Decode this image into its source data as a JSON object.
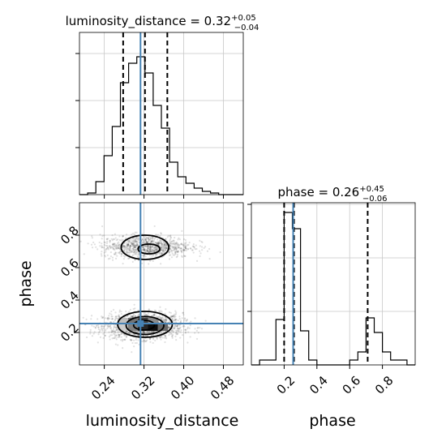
{
  "chart_data": {
    "type": "corner",
    "parameters": [
      "luminosity_distance",
      "phase"
    ],
    "truth": {
      "luminosity_distance": 0.313,
      "phase": 0.255
    },
    "color_truth": "#4682b4",
    "color_hist": "#000000",
    "color_grid": "#c8c8c8",
    "grid": true,
    "panels": [
      {
        "id": "hist_luminosity_distance",
        "type": "histogram",
        "title": "luminosity_distance = 0.32",
        "title_sup": "+0.05",
        "title_sub": "−0.04",
        "xlim": [
          0.19,
          0.52
        ],
        "ylim": [
          0,
          1
        ],
        "bin_edges": [
          0.19,
          0.2065,
          0.223,
          0.2395,
          0.256,
          0.2725,
          0.289,
          0.3055,
          0.322,
          0.3385,
          0.355,
          0.3715,
          0.388,
          0.4045,
          0.421,
          0.4375,
          0.454,
          0.4705,
          0.487,
          0.5035,
          0.52
        ],
        "counts": [
          0.0,
          0.01,
          0.08,
          0.24,
          0.42,
          0.69,
          0.81,
          0.85,
          0.75,
          0.55,
          0.41,
          0.2,
          0.11,
          0.07,
          0.04,
          0.02,
          0.01,
          0.0,
          0.0,
          0.0
        ],
        "quantiles": [
          0.278,
          0.322,
          0.367
        ]
      },
      {
        "id": "hist_phase",
        "type": "histogram",
        "title": "phase = 0.26",
        "title_sup": "+0.45",
        "title_sub": "−0.06",
        "xlim": [
          0.0,
          1.0
        ],
        "ylim": [
          0,
          1
        ],
        "bin_edges": [
          0.0,
          0.05,
          0.1,
          0.15,
          0.2,
          0.25,
          0.3,
          0.35,
          0.4,
          0.45,
          0.5,
          0.55,
          0.6,
          0.65,
          0.7,
          0.75,
          0.8,
          0.85,
          0.9,
          0.95,
          1.0
        ],
        "counts": [
          0.0,
          0.03,
          0.03,
          0.28,
          0.94,
          0.84,
          0.21,
          0.03,
          0.0,
          0.0,
          0.0,
          0.0,
          0.03,
          0.08,
          0.29,
          0.2,
          0.08,
          0.03,
          0.03,
          0.0
        ],
        "quantiles": [
          0.2,
          0.26,
          0.71
        ],
        "xticks": [
          0.2,
          0.4,
          0.6,
          0.8
        ],
        "xtick_labels": [
          "0.2",
          "0.4",
          "0.6",
          "0.8"
        ],
        "xlabel": "phase"
      },
      {
        "id": "joint",
        "type": "2d_density",
        "xlim": [
          0.19,
          0.52
        ],
        "ylim": [
          0.0,
          1.0
        ],
        "xticks": [
          0.24,
          0.32,
          0.4,
          0.48
        ],
        "xtick_labels": [
          "0.24",
          "0.32",
          "0.40",
          "0.48"
        ],
        "yticks": [
          0.2,
          0.4,
          0.6,
          0.8
        ],
        "ytick_labels": [
          "0.2",
          "0.4",
          "0.6",
          "0.8"
        ],
        "xlabel": "luminosity_distance",
        "ylabel": "phase",
        "modes": [
          {
            "x": 0.318,
            "y": 0.24,
            "sx": 0.04,
            "sy": 0.04,
            "weight": 0.62
          },
          {
            "x": 0.325,
            "y": 0.73,
            "sx": 0.045,
            "sy": 0.035,
            "weight": 0.38
          }
        ],
        "density_bins": [
          {
            "x0": 0.288,
            "x1": 0.308,
            "y0": 0.25,
            "y1": 0.29,
            "level": 0.55
          },
          {
            "x0": 0.308,
            "x1": 0.328,
            "y0": 0.25,
            "y1": 0.29,
            "level": 0.75
          },
          {
            "x0": 0.328,
            "x1": 0.348,
            "y0": 0.25,
            "y1": 0.29,
            "level": 0.45
          },
          {
            "x0": 0.288,
            "x1": 0.308,
            "y0": 0.21,
            "y1": 0.25,
            "level": 0.5
          },
          {
            "x0": 0.308,
            "x1": 0.328,
            "y0": 0.21,
            "y1": 0.25,
            "level": 0.85
          },
          {
            "x0": 0.328,
            "x1": 0.348,
            "y0": 0.21,
            "y1": 0.25,
            "level": 0.95
          },
          {
            "x0": 0.348,
            "x1": 0.368,
            "y0": 0.21,
            "y1": 0.25,
            "level": 0.6
          },
          {
            "x0": 0.268,
            "x1": 0.288,
            "y0": 0.25,
            "y1": 0.29,
            "level": 0.25
          },
          {
            "x0": 0.268,
            "x1": 0.288,
            "y0": 0.21,
            "y1": 0.25,
            "level": 0.2
          }
        ],
        "contours": [
          {
            "cx": 0.32,
            "cy": 0.245,
            "rx": 0.021,
            "ry": 0.03
          },
          {
            "cx": 0.322,
            "cy": 0.243,
            "rx": 0.038,
            "ry": 0.055
          },
          {
            "cx": 0.322,
            "cy": 0.25,
            "rx": 0.055,
            "ry": 0.08
          },
          {
            "cx": 0.33,
            "cy": 0.715,
            "rx": 0.022,
            "ry": 0.03
          },
          {
            "cx": 0.322,
            "cy": 0.725,
            "rx": 0.048,
            "ry": 0.075
          }
        ]
      }
    ]
  }
}
